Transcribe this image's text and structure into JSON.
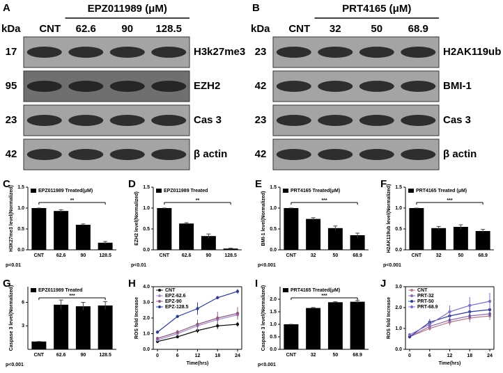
{
  "blots": [
    {
      "label": "A",
      "group": "EPZ011989 (μM)",
      "kda_header": "kDa",
      "lanes": [
        "CNT",
        "62.6",
        "90",
        "128.5"
      ],
      "rows": [
        {
          "kda": "17",
          "name": "H3k27me3"
        },
        {
          "kda": "95",
          "name": "EZH2"
        },
        {
          "kda": "23",
          "name": "Cas 3"
        },
        {
          "kda": "42",
          "name": "β actin"
        }
      ]
    },
    {
      "label": "B",
      "group": "PRT4165 (μM)",
      "kda_header": "kDa",
      "lanes": [
        "CNT",
        "32",
        "50",
        "68.9"
      ],
      "rows": [
        {
          "kda": "23",
          "name": "H2AK119ub"
        },
        {
          "kda": "42",
          "name": "BMI-1"
        },
        {
          "kda": "23",
          "name": "Cas 3"
        },
        {
          "kda": "42",
          "name": "β actin"
        }
      ]
    }
  ],
  "chart_data": [
    {
      "type": "bar",
      "label": "C",
      "legend": "EPZ011989 Treated(μM)",
      "ylabel": "H3K27me3 level(Normalized)",
      "categories": [
        "CNT",
        "62.6",
        "90",
        "128.5"
      ],
      "values": [
        1.0,
        0.93,
        0.6,
        0.17
      ],
      "errors": [
        0,
        0.03,
        0.02,
        0.03
      ],
      "ylim": [
        0,
        1.5
      ],
      "yticks": [
        {
          "value": 0,
          "label": "0.0"
        },
        0.5,
        {
          "value": 1,
          "label": "1.0"
        },
        1.5
      ],
      "sig": "**",
      "note": "p<0.01",
      "color": "#000000"
    },
    {
      "type": "bar",
      "label": "D",
      "legend": "EPZ011989 Treated",
      "ylabel": "EZH2 level(Normalized)",
      "categories": [
        "CNT",
        "62.6",
        "90",
        "128.5"
      ],
      "values": [
        1.0,
        0.63,
        0.33,
        0.03
      ],
      "errors": [
        0,
        0.02,
        0.05,
        0.01
      ],
      "ylim": [
        0,
        1.5
      ],
      "yticks": [
        {
          "value": 0,
          "label": "0.0"
        },
        0.5,
        {
          "value": 1,
          "label": "1.0"
        },
        1.5
      ],
      "sig": "**",
      "note": "p<0.01",
      "color": "#000000"
    },
    {
      "type": "bar",
      "label": "E",
      "legend": "PRT4165 Treated(μM)",
      "ylabel": "BMI-1 level(Normalized)",
      "categories": [
        "CNT",
        "32",
        "50",
        "68.9"
      ],
      "values": [
        1.0,
        0.74,
        0.52,
        0.35
      ],
      "errors": [
        0,
        0.03,
        0.05,
        0.05
      ],
      "ylim": [
        0,
        1.5
      ],
      "yticks": [
        {
          "value": 0,
          "label": "0.0"
        },
        0.5,
        {
          "value": 1,
          "label": "1.0"
        },
        1.5
      ],
      "sig": "***",
      "note": "p<0.001",
      "color": "#000000"
    },
    {
      "type": "bar",
      "label": "F",
      "legend": "PRT4165 Treated (μM)",
      "ylabel": "H2AK119ub level(Normalized)",
      "categories": [
        "CNT",
        "32",
        "50",
        "68.9"
      ],
      "values": [
        1.0,
        0.52,
        0.55,
        0.45
      ],
      "errors": [
        0,
        0.04,
        0.05,
        0.04
      ],
      "ylim": [
        0,
        1.5
      ],
      "yticks": [
        {
          "value": 0,
          "label": "0.0"
        },
        0.5,
        {
          "value": 1,
          "label": "1.0"
        },
        1.5
      ],
      "sig": "***",
      "note": "p<0.001",
      "color": "#000000"
    },
    {
      "type": "bar",
      "label": "G",
      "legend": "EPZ011989 Treated",
      "ylabel": "Caspase 3 level(Normalized)",
      "categories": [
        "CNT",
        "62.6",
        "90",
        "128.5"
      ],
      "values": [
        1.0,
        5.7,
        5.5,
        5.6
      ],
      "errors": [
        0,
        0.6,
        0.5,
        0.5
      ],
      "ylim": [
        0,
        8
      ],
      "yticks": [
        3,
        6
      ],
      "sig": "***",
      "note": "p<0.001",
      "color": "#000000"
    },
    {
      "type": "line",
      "label": "H",
      "ylabel": "ROS fold Increase",
      "xlabel": "Time(hrs)",
      "x": [
        0,
        6,
        12,
        18,
        24
      ],
      "xlim": [
        0,
        24
      ],
      "xticks": [
        0,
        6,
        12,
        18,
        24
      ],
      "ylim": [
        0,
        4
      ],
      "yticks": [
        {
          "value": 0,
          "label": "0.0"
        },
        {
          "value": 1,
          "label": "1.0"
        },
        {
          "value": 2,
          "label": "2.0"
        },
        {
          "value": 3,
          "label": "3.0"
        },
        {
          "value": 4,
          "label": "4.0"
        }
      ],
      "series": [
        {
          "name": "CNT",
          "color": "#111111",
          "values": [
            0.5,
            0.8,
            1.2,
            1.5,
            1.6
          ],
          "errors": [
            0.05,
            0.1,
            0.15,
            0.2,
            0.15
          ]
        },
        {
          "name": "EPZ-62.6",
          "color": "#a78bc4",
          "values": [
            0.6,
            1.0,
            1.5,
            1.9,
            2.2
          ],
          "errors": [
            0.05,
            0.1,
            0.3,
            0.3,
            0.3
          ]
        },
        {
          "name": "EPZ-90",
          "color": "#8a5a83",
          "values": [
            0.7,
            1.1,
            1.6,
            2.0,
            2.3
          ],
          "errors": [
            0.05,
            0.15,
            0.3,
            0.4,
            0.4
          ]
        },
        {
          "name": "EPZ-128.5",
          "color": "#2e3a8c",
          "values": [
            1.1,
            2.1,
            2.6,
            3.3,
            3.7
          ],
          "errors": [
            0.1,
            0.1,
            0.4,
            0.1,
            0.15
          ]
        }
      ]
    },
    {
      "type": "bar",
      "label": "I",
      "legend": "PRT4165 Treated(μM)",
      "ylabel": "Caspase 3 level(Normalized)",
      "categories": [
        "CNT",
        "32",
        "50",
        "68.9"
      ],
      "values": [
        1.0,
        1.65,
        1.88,
        1.9
      ],
      "errors": [
        0,
        0.02,
        0.02,
        0.05
      ],
      "ylim": [
        0,
        2.5
      ],
      "yticks": [
        {
          "value": 0,
          "label": "0.0"
        },
        0.5,
        {
          "value": 1,
          "label": "1.0"
        },
        1.5,
        {
          "value": 2,
          "label": "2.0"
        }
      ],
      "sig": "***",
      "note": "p<0.001",
      "color": "#000000"
    },
    {
      "type": "line",
      "label": "J",
      "ylabel": "ROS fold Increase",
      "xlabel": "Time(hrs)",
      "x": [
        0,
        6,
        12,
        18,
        24
      ],
      "xlim": [
        0,
        24
      ],
      "xticks": [
        0,
        6,
        12,
        18,
        24
      ],
      "ylim": [
        0,
        3
      ],
      "yticks": [
        {
          "value": 0,
          "label": "0.0"
        },
        {
          "value": 1,
          "label": "1.0"
        },
        {
          "value": 2,
          "label": "2.0"
        },
        {
          "value": 3,
          "label": "3.0"
        }
      ],
      "series": [
        {
          "name": "CNT",
          "color": "#b07a8e",
          "values": [
            0.6,
            1.0,
            1.3,
            1.5,
            1.6
          ],
          "errors": [
            0.05,
            0.1,
            0.15,
            0.2,
            0.2
          ]
        },
        {
          "name": "PRT-32",
          "color": "#8f6aa8",
          "values": [
            0.6,
            1.1,
            1.4,
            1.6,
            1.7
          ],
          "errors": [
            0.05,
            0.1,
            0.2,
            0.2,
            0.2
          ]
        },
        {
          "name": "PRT-50",
          "color": "#2f3a8a",
          "values": [
            0.6,
            1.3,
            1.6,
            1.8,
            1.9
          ],
          "errors": [
            0.05,
            0.15,
            0.25,
            0.3,
            0.3
          ]
        },
        {
          "name": "PRT-68.9",
          "color": "#7d6fc0",
          "values": [
            0.7,
            1.2,
            1.8,
            2.1,
            2.3
          ],
          "errors": [
            0.05,
            0.2,
            0.3,
            0.4,
            0.4
          ]
        }
      ]
    }
  ]
}
